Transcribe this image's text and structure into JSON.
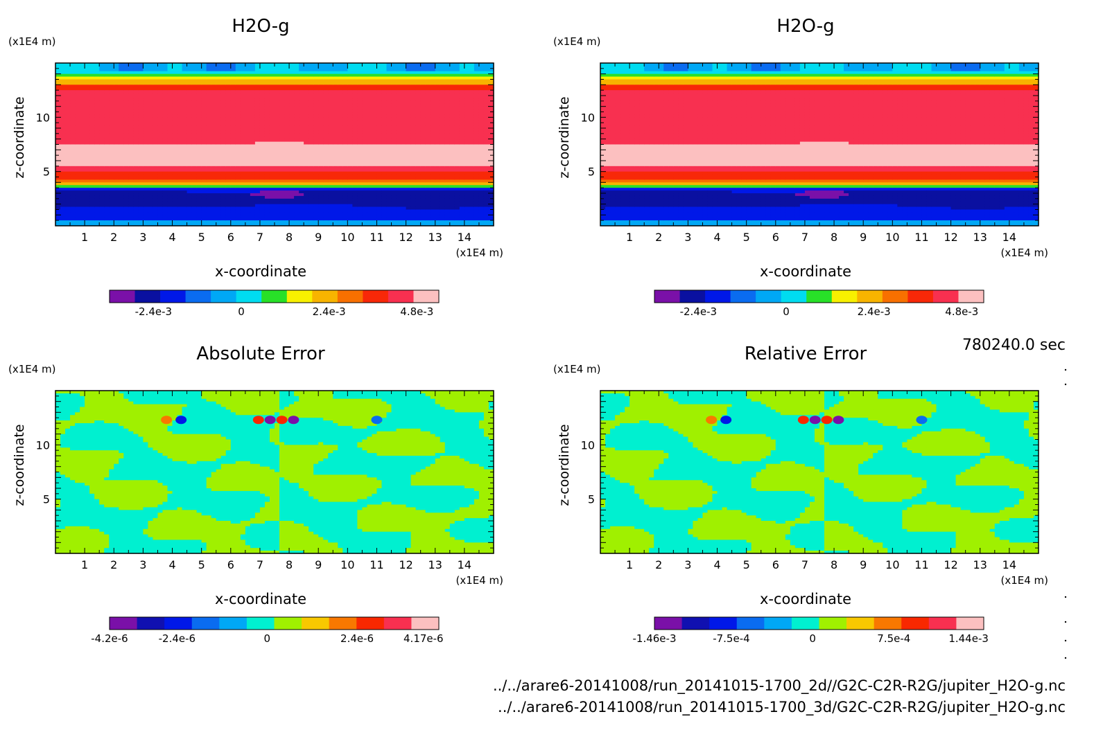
{
  "time_label": "780240.0 sec",
  "files": [
    "../../arare6-20141008/run_20141015-1700_2d//G2C-C2R-R2G/jupiter_H2O-g.nc",
    "../../arare6-20141008/run_20141015-1700_3d/G2C-C2R-R2G/jupiter_H2O-g.nc"
  ],
  "palettes": {
    "h2o": [
      "#7a10a8",
      "#0a10a0",
      "#0018e8",
      "#0a6cf0",
      "#00a8f5",
      "#00dcf0",
      "#28e028",
      "#f8f000",
      "#f8b400",
      "#f87000",
      "#f82808",
      "#f83050",
      "#fcc0c0"
    ],
    "err": [
      "#7a10a8",
      "#1010b0",
      "#0018e8",
      "#0a6cf0",
      "#00a8f5",
      "#00f0d0",
      "#a0f000",
      "#f8c800",
      "#f87800",
      "#f82800",
      "#f83050",
      "#fcc0c0"
    ]
  },
  "chart_data": [
    {
      "type": "heatmap",
      "title": "H2O-g",
      "xlabel": "x-coordinate",
      "ylabel": "z-coordinate",
      "x_unit": "(x1E4 m)",
      "y_unit": "(x1E4 m)",
      "x_ticks": [
        "1",
        "2",
        "3",
        "4",
        "5",
        "6",
        "7",
        "8",
        "9",
        "10",
        "11",
        "12",
        "13",
        "14"
      ],
      "y_ticks": [
        "5",
        "10"
      ],
      "xlim": [
        0,
        15
      ],
      "ylim": [
        0,
        15
      ],
      "colorbar": {
        "ticks": [
          "-2.4e-3",
          "0",
          "2.4e-3",
          "4.8e-3"
        ],
        "tick_values": [
          -0.0024,
          0,
          0.0024,
          0.0048
        ],
        "range": [
          -0.0036,
          0.0054
        ],
        "palette": "h2o"
      },
      "field": "h2o"
    },
    {
      "type": "heatmap",
      "title": "H2O-g",
      "xlabel": "x-coordinate",
      "ylabel": "z-coordinate",
      "x_unit": "(x1E4 m)",
      "y_unit": "(x1E4 m)",
      "x_ticks": [
        "1",
        "2",
        "3",
        "4",
        "5",
        "6",
        "7",
        "8",
        "9",
        "10",
        "11",
        "12",
        "13",
        "14"
      ],
      "y_ticks": [
        "5",
        "10"
      ],
      "xlim": [
        0,
        15
      ],
      "ylim": [
        0,
        15
      ],
      "colorbar": {
        "ticks": [
          "-2.4e-3",
          "0",
          "2.4e-3",
          "4.8e-3"
        ],
        "tick_values": [
          -0.0024,
          0,
          0.0024,
          0.0048
        ],
        "range": [
          -0.0036,
          0.0054
        ],
        "palette": "h2o"
      },
      "field": "h2o"
    },
    {
      "type": "heatmap",
      "title": "Absolute Error",
      "xlabel": "x-coordinate",
      "ylabel": "z-coordinate",
      "x_unit": "(x1E4 m)",
      "y_unit": "(x1E4 m)",
      "x_ticks": [
        "1",
        "2",
        "3",
        "4",
        "5",
        "6",
        "7",
        "8",
        "9",
        "10",
        "11",
        "12",
        "13",
        "14"
      ],
      "y_ticks": [
        "5",
        "10"
      ],
      "xlim": [
        0,
        15
      ],
      "ylim": [
        0,
        15
      ],
      "colorbar": {
        "ticks": [
          "-4.2e-6",
          "-2.4e-6",
          "0",
          "2.4e-6",
          "4.17e-6"
        ],
        "tick_values": [
          -4.2e-06,
          -2.4e-06,
          0,
          2.4e-06,
          4.17e-06
        ],
        "range": [
          -4.2e-06,
          4.58e-06
        ],
        "palette": "err"
      },
      "field": "err"
    },
    {
      "type": "heatmap",
      "title": "Relative Error",
      "xlabel": "x-coordinate",
      "ylabel": "z-coordinate",
      "x_unit": "(x1E4 m)",
      "y_unit": "(x1E4 m)",
      "x_ticks": [
        "1",
        "2",
        "3",
        "4",
        "5",
        "6",
        "7",
        "8",
        "9",
        "10",
        "11",
        "12",
        "13",
        "14"
      ],
      "y_ticks": [
        "5",
        "10"
      ],
      "xlim": [
        0,
        15
      ],
      "ylim": [
        0,
        15
      ],
      "colorbar": {
        "ticks": [
          "-1.46e-3",
          "-7.5e-4",
          "0",
          "7.5e-4",
          "1.44e-3"
        ],
        "tick_values": [
          -0.00146,
          -0.00075,
          0,
          0.00075,
          0.00144
        ],
        "range": [
          -0.00146,
          0.00158
        ],
        "palette": "err"
      },
      "field": "err"
    }
  ]
}
